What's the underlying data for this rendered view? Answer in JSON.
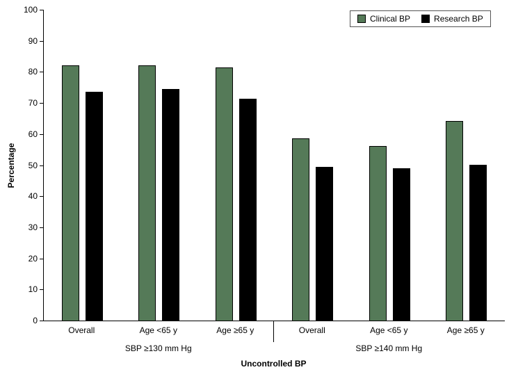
{
  "figure": {
    "y_axis_title": "Percentage",
    "x_axis_title": "Uncontrolled BP"
  },
  "chart_data": {
    "type": "bar",
    "title": "",
    "ylabel": "Percentage",
    "xlabel": "Uncontrolled BP",
    "ylim": [
      0,
      100
    ],
    "yticks": [
      0,
      10,
      20,
      30,
      40,
      50,
      60,
      70,
      80,
      90,
      100
    ],
    "grid": false,
    "legend_position": "top-right",
    "groups": [
      {
        "label": "SBP ≥130 mm Hg",
        "categories": [
          "Overall",
          "Age <65 y",
          "Age ≥65 y"
        ]
      },
      {
        "label": "SBP ≥140 mm Hg",
        "categories": [
          "Overall",
          "Age <65 y",
          "Age ≥65 y"
        ]
      }
    ],
    "series": [
      {
        "name": "Clinical BP",
        "color": "#557a58",
        "values": [
          82.0,
          82.2,
          81.4,
          58.6,
          56.1,
          64.2
        ]
      },
      {
        "name": "Research BP",
        "color": "#000000",
        "values": [
          73.6,
          74.5,
          71.4,
          49.5,
          49.1,
          50.1
        ]
      }
    ]
  },
  "colors": {
    "axis": "#000000",
    "background": "#ffffff",
    "legend_border": "#555555"
  }
}
